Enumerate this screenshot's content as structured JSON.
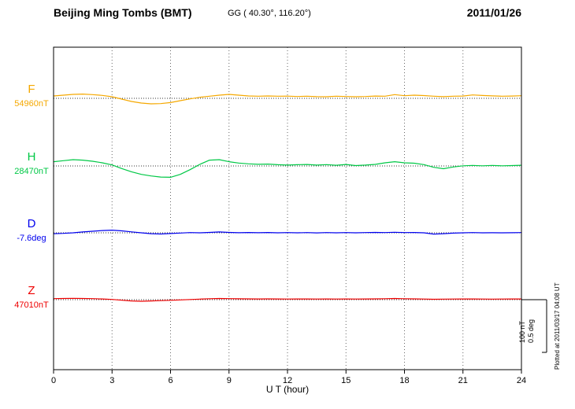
{
  "header": {
    "station": "Beijing Ming Tombs (BMT)",
    "coords": "GG ( 40.30°, 116.20°)",
    "date": "2011/01/26"
  },
  "axis": {
    "xlabel": "U T (hour)",
    "xticks": [
      0,
      3,
      6,
      9,
      12,
      15,
      18,
      21,
      24
    ],
    "xmin": 0,
    "xmax": 24
  },
  "scalebar": {
    "nt_label": "100 nT",
    "deg_label": "0.5 deg"
  },
  "footer": {
    "plotted_at": "Plotted at 2011/03/17 04:08 UT"
  },
  "chart_data": {
    "type": "line",
    "title": "Beijing Ming Tombs (BMT) magnetogram",
    "date": "2011/01/26",
    "xlabel": "U T (hour)",
    "x_range": [
      0,
      24
    ],
    "x_step_hours": 0.5,
    "grid": "dotted vertical every 3 hours, dotted horizontal baseline per component",
    "legend_position": "left margin component labels",
    "scale_bar": {
      "nT": 100,
      "deg": 0.5
    },
    "series": [
      {
        "name": "F",
        "baseline_label": "54960nT",
        "baseline_value": 54960,
        "unit": "nT",
        "color": "#f5a800",
        "note": "values are deviations from baseline in nT",
        "values": [
          4.5,
          6,
          7.5,
          8,
          7,
          5.5,
          3,
          -1.5,
          -6,
          -9,
          -10.5,
          -10,
          -8,
          -4.5,
          -1,
          2,
          4,
          6,
          7.5,
          6,
          4.5,
          4,
          4.5,
          4,
          4.2,
          3.4,
          4,
          3.2,
          3,
          4,
          3.4,
          3,
          3.4,
          4.4,
          4,
          7,
          5,
          6,
          5.2,
          4,
          3.2,
          4,
          4.4,
          6.4,
          5.4,
          4.6,
          4,
          4.4,
          5
        ]
      },
      {
        "name": "H",
        "baseline_label": "28470nT",
        "baseline_value": 28470,
        "unit": "nT",
        "color": "#00c846",
        "note": "values are deviations from baseline in nT",
        "values": [
          8,
          10,
          12,
          11,
          9,
          6,
          2,
          -5,
          -11,
          -16,
          -19,
          -21,
          -21.5,
          -16,
          -7,
          3,
          11,
          12,
          8,
          5.5,
          4,
          3.2,
          3.6,
          2.4,
          1.6,
          2.4,
          2.8,
          1.6,
          2.6,
          1.4,
          2.8,
          0.8,
          1.6,
          3,
          6,
          8,
          6,
          5.2,
          2.6,
          -2.6,
          -5.2,
          -2,
          0.3,
          1,
          0.3,
          1,
          0.3,
          0.8,
          1.3
        ]
      },
      {
        "name": "D",
        "baseline_label": "-7.6deg",
        "baseline_value": -7.6,
        "unit": "deg",
        "color": "#0000ee",
        "note": "values are deviations from baseline in degrees",
        "values": [
          -0.008,
          -0.005,
          0,
          0.008,
          0.015,
          0.022,
          0.025,
          0.019,
          0.009,
          0,
          -0.008,
          -0.011,
          -0.007,
          -0.002,
          0.002,
          0,
          0.004,
          0.008,
          0.004,
          0.001,
          0.003,
          0.001,
          0.003,
          0,
          0.002,
          0,
          0.002,
          -0.001,
          0.002,
          0,
          0.002,
          0,
          0.002,
          0.004,
          0.002,
          0.005,
          0.002,
          0.003,
          0,
          -0.012,
          -0.008,
          -0.003,
          0,
          0.002,
          0,
          0.001,
          0,
          0.001,
          0.002
        ]
      },
      {
        "name": "Z",
        "baseline_label": "47010nT",
        "baseline_value": 47010,
        "unit": "nT",
        "color": "#ee0000",
        "note": "values are deviations from baseline in nT",
        "values": [
          2,
          2.3,
          2.5,
          2.3,
          2,
          1.4,
          0.5,
          -1,
          -2.4,
          -3,
          -2.4,
          -1.8,
          -1.2,
          -0.5,
          0.3,
          1,
          1.8,
          2.3,
          2,
          1.6,
          1.5,
          1.4,
          1.5,
          1.3,
          1.2,
          1.4,
          1.3,
          1.2,
          1.3,
          1.2,
          1.4,
          1.2,
          1.3,
          1.5,
          1.8,
          2.2,
          1.8,
          1.5,
          1.2,
          0.8,
          1,
          1.2,
          1.4,
          1.3,
          1.2,
          1.1,
          1.2,
          1.3,
          1.4
        ]
      }
    ]
  }
}
